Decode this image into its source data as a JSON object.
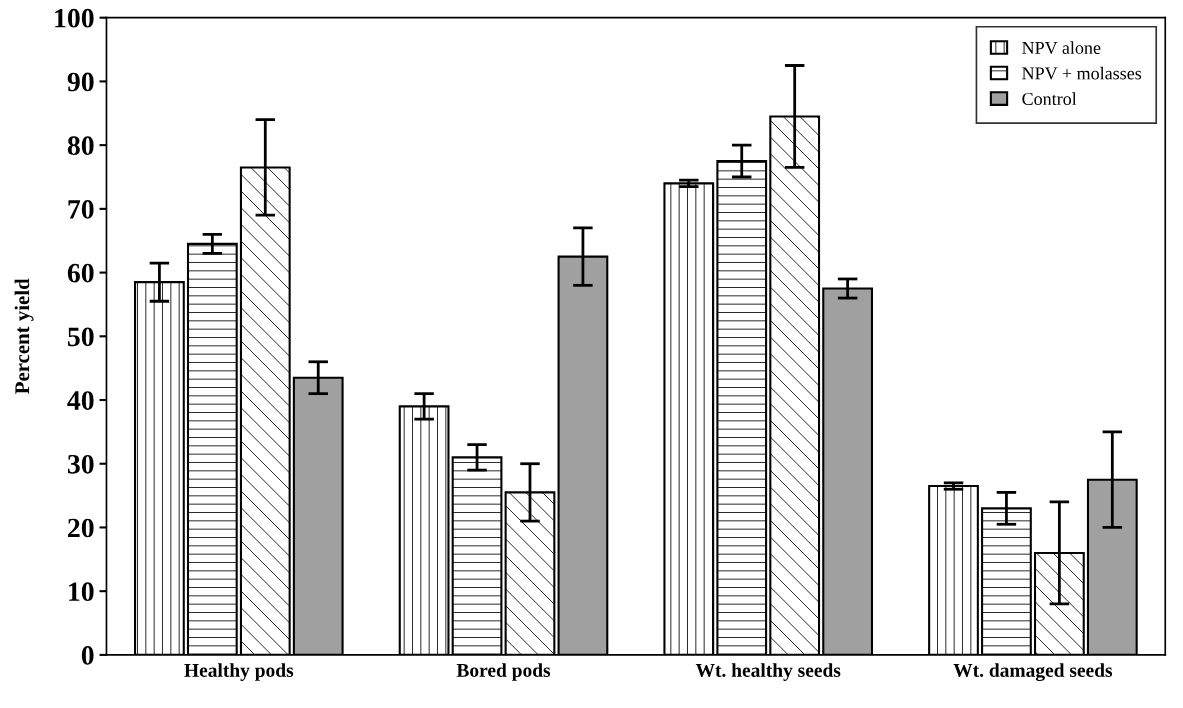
{
  "chart_data": {
    "type": "bar",
    "ylabel": "Percent yield",
    "categories": [
      "Healthy pods",
      "Bored pods",
      "Wt. healthy seeds",
      "Wt. damaged seeds"
    ],
    "series": [
      {
        "name": "NPV alone",
        "color": "#000000",
        "values": [
          58.5,
          39,
          74,
          26.5
        ],
        "errors": [
          3,
          2,
          0.5,
          0.5
        ]
      },
      {
        "name": "NPV + molasses",
        "color": "#000000",
        "values": [
          64.5,
          31,
          77.5,
          23
        ],
        "errors": [
          1.5,
          2,
          2.5,
          2.5
        ]
      },
      {
        "color": "#000000",
        "values": [
          76.5,
          25.5,
          84.5,
          16
        ],
        "errors": [
          7.5,
          4.5,
          8,
          8
        ]
      },
      {
        "name": "Control",
        "color": "#a0a0a0",
        "values": [
          43.5,
          62.5,
          57.5,
          27.5
        ],
        "errors": [
          2.5,
          4.5,
          1.5,
          7.5
        ]
      }
    ],
    "ylim": [
      0,
      100
    ],
    "yticks": [
      0,
      10,
      20,
      30,
      40,
      50,
      60,
      70,
      80,
      90,
      100
    ],
    "grid": false,
    "legend": "top right"
  }
}
